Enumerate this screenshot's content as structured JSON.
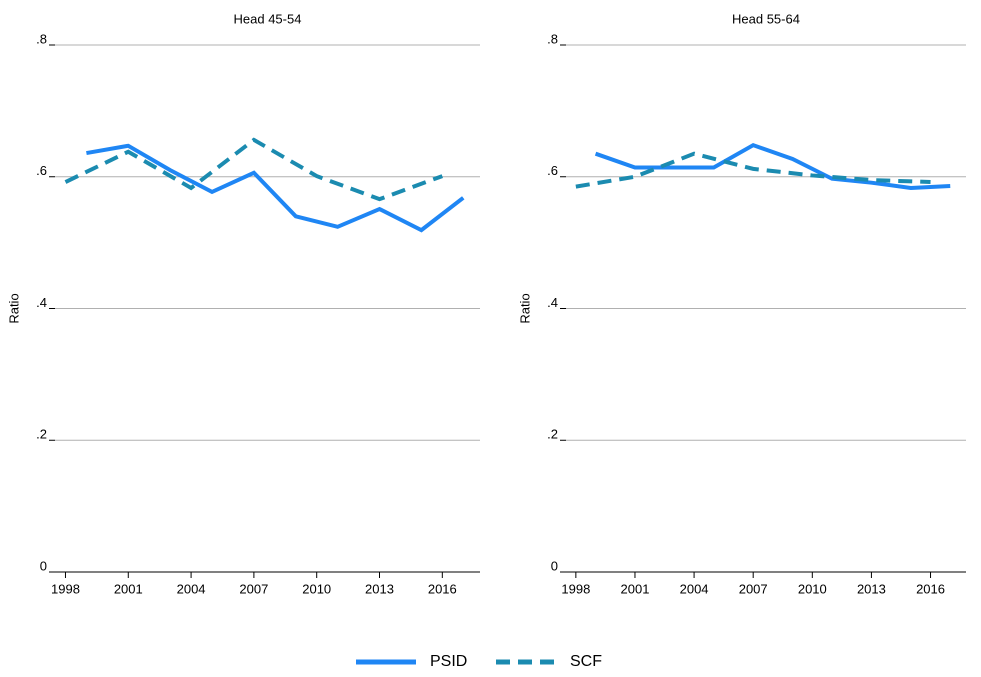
{
  "chart_data": [
    {
      "type": "line",
      "title": "Head 45-54",
      "y_label": "Ratio",
      "xlim": [
        1997.5,
        2017.8
      ],
      "xticks": [
        1998,
        2001,
        2004,
        2007,
        2010,
        2013,
        2016
      ],
      "ylim": [
        0,
        0.8
      ],
      "yticks": [
        0,
        {
          "value": 0.2,
          "label": ".2"
        },
        {
          "value": 0.4,
          "label": ".4"
        },
        {
          "value": 0.6,
          "label": ".6"
        },
        {
          "value": 0.8,
          "label": ".8"
        }
      ],
      "grid": true,
      "series": [
        {
          "name": "PSID",
          "color": "#1f86f4",
          "line_style": "solid",
          "x": [
            1999,
            2001,
            2003,
            2005,
            2007,
            2009,
            2011,
            2013,
            2015,
            2017
          ],
          "values": [
            0.636,
            0.647,
            0.61,
            0.577,
            0.606,
            0.54,
            0.524,
            0.551,
            0.519,
            0.568
          ]
        },
        {
          "name": "SCF",
          "color": "#1b8bb0",
          "line_style": "dashed",
          "x": [
            1998,
            2001,
            2004,
            2007,
            2010,
            2013,
            2016
          ],
          "values": [
            0.592,
            0.638,
            0.583,
            0.656,
            0.601,
            0.566,
            0.601
          ]
        }
      ]
    },
    {
      "type": "line",
      "title": "Head 55-64",
      "y_label": "Ratio",
      "xlim": [
        1997.5,
        2017.8
      ],
      "xticks": [
        1998,
        2001,
        2004,
        2007,
        2010,
        2013,
        2016
      ],
      "ylim": [
        0,
        0.8
      ],
      "yticks": [
        0,
        {
          "value": 0.2,
          "label": ".2"
        },
        {
          "value": 0.4,
          "label": ".4"
        },
        {
          "value": 0.6,
          "label": ".6"
        },
        {
          "value": 0.8,
          "label": ".8"
        }
      ],
      "grid": true,
      "series": [
        {
          "color": "#1f86f4",
          "line_style": "solid",
          "x": [
            1999,
            2001,
            2003,
            2005,
            2007,
            2009,
            2011,
            2013,
            2015,
            2017
          ],
          "values": [
            0.635,
            0.614,
            0.614,
            0.614,
            0.648,
            0.627,
            0.597,
            0.591,
            0.583,
            0.586
          ]
        },
        {
          "color": "#1b8bb0",
          "line_style": "dashed",
          "x": [
            1998,
            2001,
            2004,
            2007,
            2010,
            2013,
            2016
          ],
          "values": [
            0.585,
            0.6,
            0.635,
            0.612,
            0.602,
            0.595,
            0.592
          ]
        }
      ]
    }
  ]
}
